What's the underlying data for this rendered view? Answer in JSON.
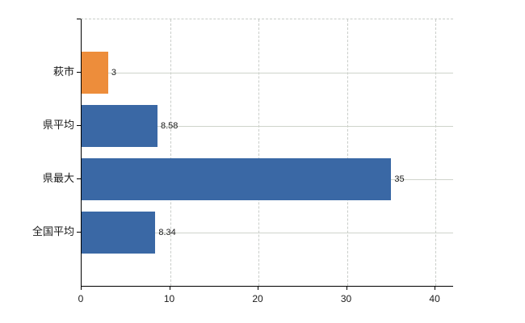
{
  "chart": {
    "background_color": "#ffffff",
    "axis_color": "#000000",
    "grid_color_horizontal": "#cfd4cb",
    "grid_color_vertical": "#c9cdc9",
    "text_color": "#1a1a1a"
  },
  "chart_data": {
    "type": "bar",
    "orientation": "horizontal",
    "title": "",
    "xlabel": "",
    "ylabel": "",
    "categories": [
      "萩市",
      "県平均",
      "県最大",
      "全国平均"
    ],
    "values": [
      3,
      8.58,
      35,
      8.34
    ],
    "value_labels": [
      "3",
      "8.58",
      "35",
      "8.34"
    ],
    "bar_colors": [
      "#ed8d3b",
      "#3a68a5",
      "#3a68a5",
      "#3a68a5"
    ],
    "x_ticks": [
      0,
      10,
      20,
      30,
      40
    ],
    "xlim": [
      0,
      42
    ],
    "legend": false,
    "grid": {
      "vertical": "dashed at each x tick",
      "horizontal": "solid at each category center",
      "top_border": "dashed"
    }
  }
}
